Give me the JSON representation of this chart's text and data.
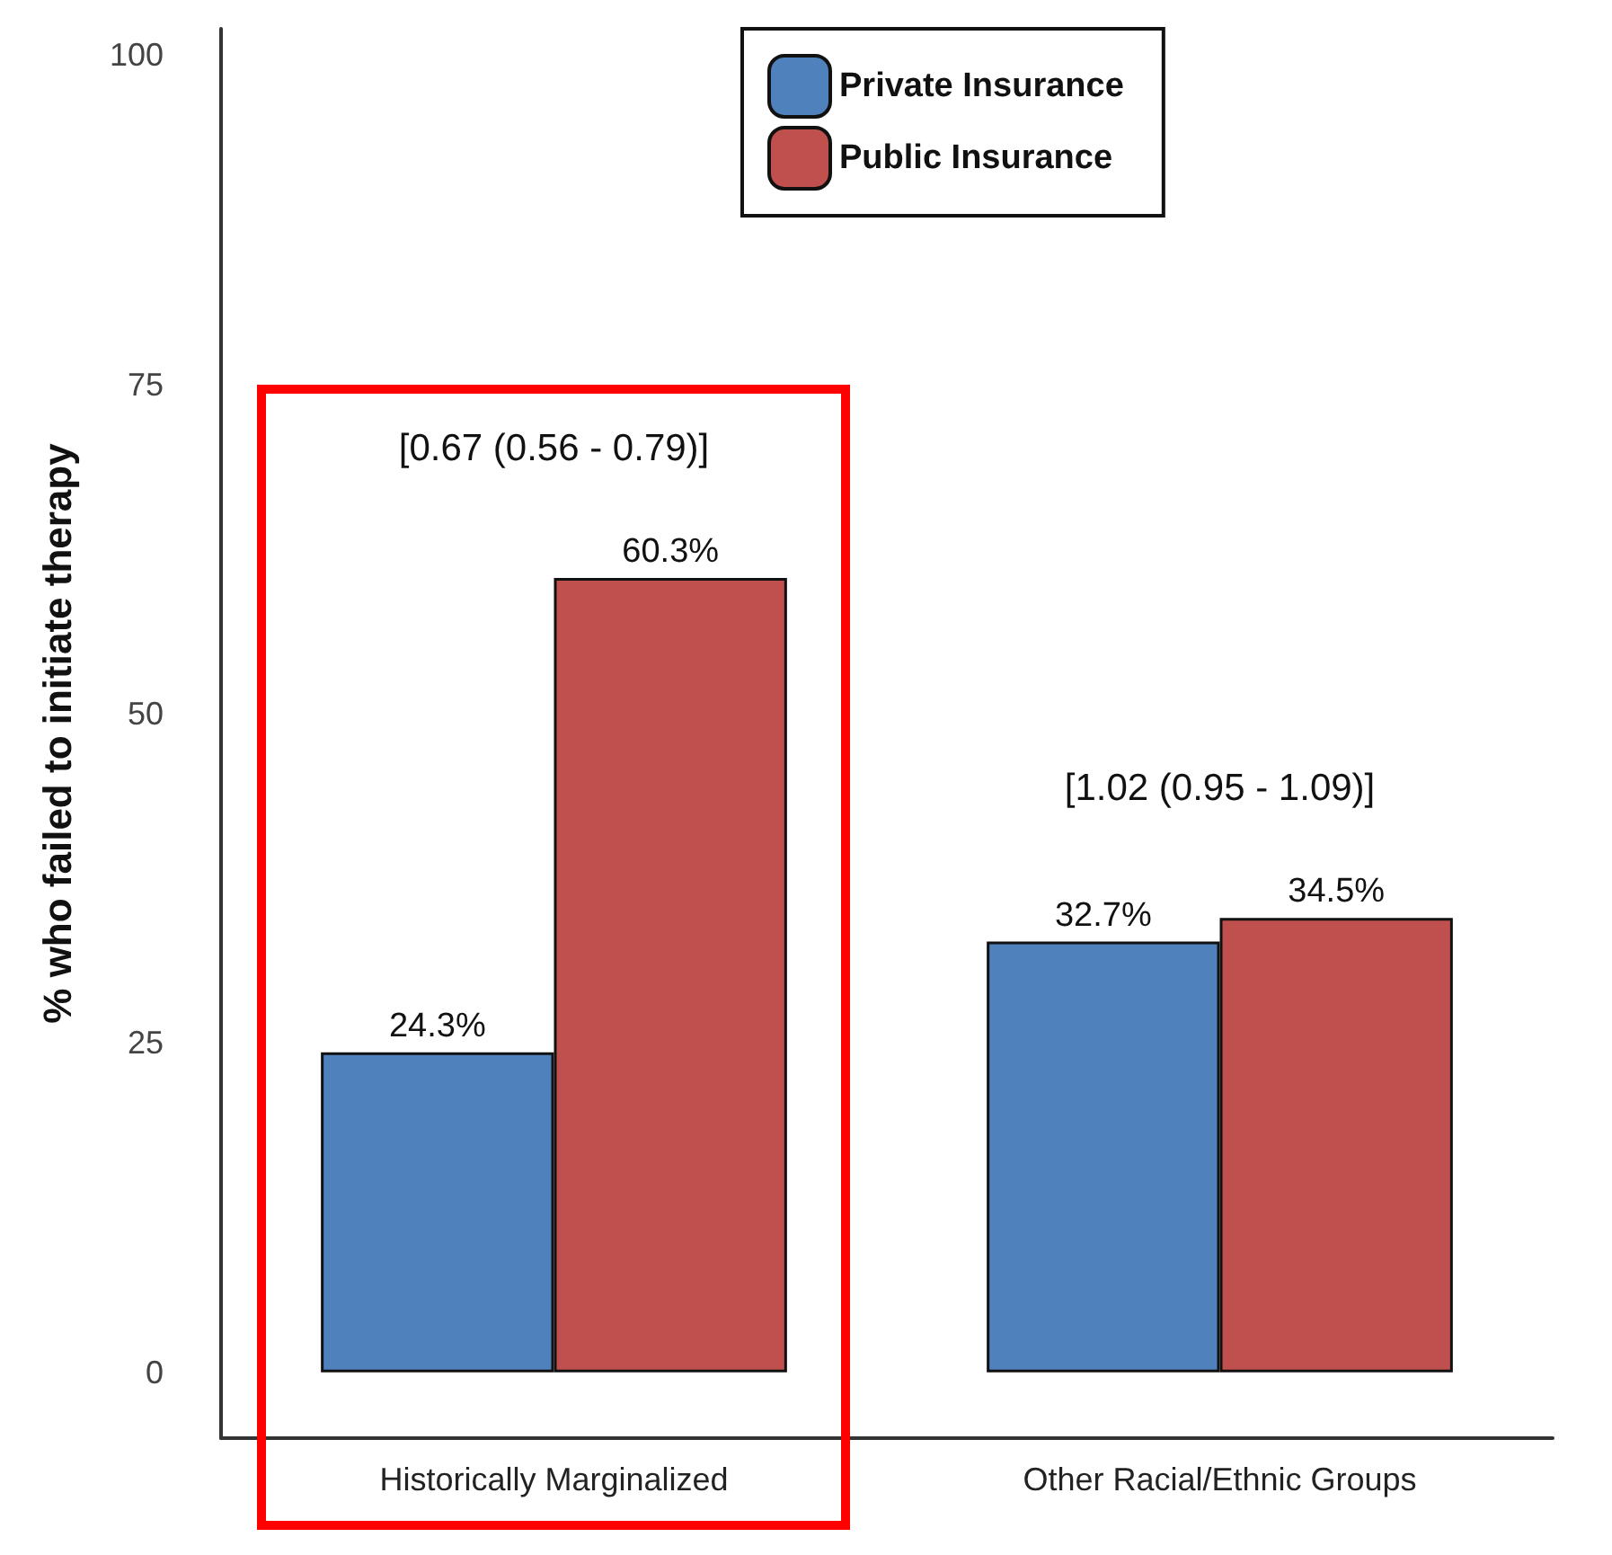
{
  "chart_data": {
    "type": "bar",
    "ylabel": "% who failed to initiate therapy",
    "categories": [
      "Historically Marginalized",
      "Other Racial/Ethnic Groups"
    ],
    "series": [
      {
        "name": "Private Insurance",
        "color": "#4f81bd",
        "values": [
          24.3,
          32.7
        ],
        "value_labels": [
          "24.3%",
          "32.7%"
        ]
      },
      {
        "name": "Public Insurance",
        "color": "#c0504d",
        "values": [
          60.3,
          34.5
        ],
        "value_labels": [
          "60.3%",
          "34.5%"
        ]
      }
    ],
    "ylim": [
      -5,
      102
    ],
    "yticks": [
      0,
      25,
      50,
      75,
      100
    ],
    "grid": false,
    "legend": "top",
    "annotations": [
      "[0.67 (0.56 - 0.79)]",
      "[1.02 (0.95 - 1.09)]"
    ]
  }
}
